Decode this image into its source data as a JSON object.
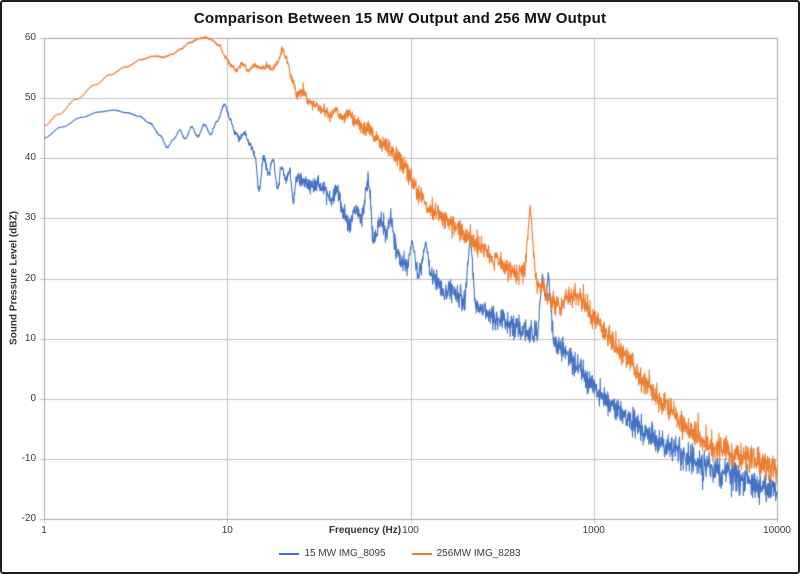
{
  "chart_data": {
    "type": "line",
    "title": "Comparison Between 15 MW Output and 256 MW Output",
    "xlabel": "Frequency (Hz)",
    "ylabel": "Sound Pressure Level (dBZ)",
    "x_scale": "log",
    "xlim": [
      1,
      10000
    ],
    "ylim": [
      -20,
      60
    ],
    "x_ticks": [
      1,
      10,
      100,
      1000,
      10000
    ],
    "y_ticks": [
      60,
      50,
      40,
      30,
      20,
      10,
      0,
      -10,
      -20
    ],
    "grid": true,
    "gridline_color": "#c3c3c3",
    "plot_border_color": "#a6a6a6",
    "legend_position": "bottom-center",
    "series": [
      {
        "name": "15 MW IMG_8095",
        "color": "#4472C4",
        "anchors": [
          [
            1,
            43.4
          ],
          [
            1.25,
            45.2
          ],
          [
            1.6,
            46.8
          ],
          [
            2,
            47.7
          ],
          [
            2.4,
            48
          ],
          [
            2.8,
            47.6
          ],
          [
            3.3,
            47
          ],
          [
            3.8,
            45.8
          ],
          [
            4.3,
            43.8
          ],
          [
            4.7,
            41.8
          ],
          [
            5.1,
            43.2
          ],
          [
            5.5,
            44.7
          ],
          [
            5.9,
            43.2
          ],
          [
            6.4,
            45.2
          ],
          [
            6.9,
            43.6
          ],
          [
            7.5,
            45.6
          ],
          [
            8.1,
            44
          ],
          [
            8.8,
            46.2
          ],
          [
            9.7,
            49
          ],
          [
            10.4,
            46.4
          ],
          [
            11,
            44.3
          ],
          [
            11.7,
            43.3
          ],
          [
            12.4,
            44.2
          ],
          [
            13.3,
            42.2
          ],
          [
            14.2,
            40.5
          ],
          [
            14.9,
            34.3
          ],
          [
            15.8,
            40.2
          ],
          [
            16.8,
            37.3
          ],
          [
            17.8,
            39.6
          ],
          [
            18.8,
            35.2
          ],
          [
            19.8,
            38.6
          ],
          [
            21,
            36.4
          ],
          [
            22,
            37.6
          ],
          [
            22.9,
            33.3
          ],
          [
            24,
            36.8
          ],
          [
            26,
            36.3
          ],
          [
            28,
            35.4
          ],
          [
            31,
            36
          ],
          [
            34,
            34.6
          ],
          [
            37,
            33.2
          ],
          [
            40,
            34.6
          ],
          [
            43,
            31
          ],
          [
            46,
            28.8
          ],
          [
            50,
            31.8
          ],
          [
            54,
            30.2
          ],
          [
            59,
            36
          ],
          [
            63,
            26.4
          ],
          [
            68,
            29.6
          ],
          [
            73,
            27.8
          ],
          [
            78,
            29.8
          ],
          [
            84,
            24.8
          ],
          [
            92,
            22.5
          ],
          [
            100,
            21
          ],
          [
            115,
            21.5
          ],
          [
            135,
            19.5
          ],
          [
            160,
            18
          ],
          [
            200,
            16.5
          ],
          [
            240,
            14.8
          ],
          [
            300,
            13.3
          ],
          [
            370,
            12
          ],
          [
            450,
            11
          ],
          [
            550,
            10
          ],
          [
            650,
            8.6
          ],
          [
            800,
            5.8
          ],
          [
            1000,
            1.8
          ],
          [
            1250,
            -1
          ],
          [
            1600,
            -3.8
          ],
          [
            2000,
            -6
          ],
          [
            2600,
            -8.2
          ],
          [
            3300,
            -9.8
          ],
          [
            4200,
            -11.3
          ],
          [
            5300,
            -12.6
          ],
          [
            6700,
            -13.8
          ],
          [
            8300,
            -14.8
          ],
          [
            10000,
            -15.6
          ]
        ],
        "noise": [
          [
            1,
            0
          ],
          [
            9,
            0.2
          ],
          [
            12,
            0.6
          ],
          [
            20,
            1.2
          ],
          [
            40,
            1.8
          ],
          [
            70,
            2.2
          ],
          [
            120,
            2.4
          ],
          [
            300,
            2.4
          ],
          [
            700,
            2.5
          ],
          [
            1500,
            2.8
          ],
          [
            4000,
            3
          ],
          [
            10000,
            3.2
          ]
        ],
        "spikes": [
          [
            102,
            26.5
          ],
          [
            121,
            26.2
          ],
          [
            212,
            27.6
          ],
          [
            525,
            20.8
          ],
          [
            565,
            21.2
          ]
        ]
      },
      {
        "name": "256MW IMG_8283",
        "color": "#ED7D31",
        "anchors": [
          [
            1,
            45.4
          ],
          [
            1.2,
            47.3
          ],
          [
            1.5,
            49.8
          ],
          [
            1.9,
            52.2
          ],
          [
            2.3,
            53.9
          ],
          [
            2.8,
            55.2
          ],
          [
            3.4,
            56.4
          ],
          [
            4,
            57
          ],
          [
            4.5,
            56.8
          ],
          [
            5,
            57.3
          ],
          [
            5.6,
            58.2
          ],
          [
            6.3,
            59.3
          ],
          [
            7,
            59.9
          ],
          [
            7.6,
            60.1
          ],
          [
            8.2,
            59.7
          ],
          [
            9,
            58.8
          ],
          [
            9.8,
            56.8
          ],
          [
            10.5,
            55.4
          ],
          [
            11.3,
            54.6
          ],
          [
            12.1,
            55.7
          ],
          [
            13,
            54.7
          ],
          [
            14,
            55.4
          ],
          [
            15.2,
            55
          ],
          [
            16.5,
            55.3
          ],
          [
            17.7,
            55
          ],
          [
            19,
            56.2
          ],
          [
            20,
            58.2
          ],
          [
            21,
            56.5
          ],
          [
            22.5,
            53.2
          ],
          [
            24,
            50.7
          ],
          [
            26,
            51
          ],
          [
            28,
            49.3
          ],
          [
            30,
            48.6
          ],
          [
            33,
            48.1
          ],
          [
            36,
            47
          ],
          [
            39,
            48.4
          ],
          [
            42,
            46.7
          ],
          [
            46,
            47.4
          ],
          [
            50,
            46.2
          ],
          [
            57,
            45
          ],
          [
            64,
            43.6
          ],
          [
            72,
            42.4
          ],
          [
            82,
            40.4
          ],
          [
            91,
            39
          ],
          [
            100,
            37
          ],
          [
            110,
            34.5
          ],
          [
            125,
            32
          ],
          [
            145,
            30.5
          ],
          [
            170,
            29
          ],
          [
            200,
            27.4
          ],
          [
            240,
            25.3
          ],
          [
            290,
            22.8
          ],
          [
            340,
            21.2
          ],
          [
            400,
            20.8
          ],
          [
            440,
            21.8
          ],
          [
            470,
            20.8
          ],
          [
            520,
            18.6
          ],
          [
            580,
            16.4
          ],
          [
            650,
            15.6
          ],
          [
            720,
            17
          ],
          [
            820,
            17.3
          ],
          [
            900,
            15.8
          ],
          [
            1000,
            13.4
          ],
          [
            1200,
            10.6
          ],
          [
            1500,
            6.8
          ],
          [
            1900,
            2.8
          ],
          [
            2400,
            -0.8
          ],
          [
            3000,
            -4
          ],
          [
            3600,
            -6
          ],
          [
            4400,
            -7.6
          ],
          [
            5400,
            -8.8
          ],
          [
            6600,
            -9.8
          ],
          [
            8100,
            -10.8
          ],
          [
            10000,
            -11.8
          ]
        ],
        "noise": [
          [
            1,
            0
          ],
          [
            9,
            0.2
          ],
          [
            11,
            0.5
          ],
          [
            20,
            0.6
          ],
          [
            25,
            1
          ],
          [
            40,
            1.3
          ],
          [
            70,
            1.8
          ],
          [
            120,
            2.2
          ],
          [
            300,
            2.3
          ],
          [
            700,
            2.3
          ],
          [
            1500,
            2.6
          ],
          [
            4000,
            2.9
          ],
          [
            10000,
            3.1
          ]
        ],
        "spikes": [
          [
            450,
            32.2
          ]
        ]
      }
    ]
  }
}
